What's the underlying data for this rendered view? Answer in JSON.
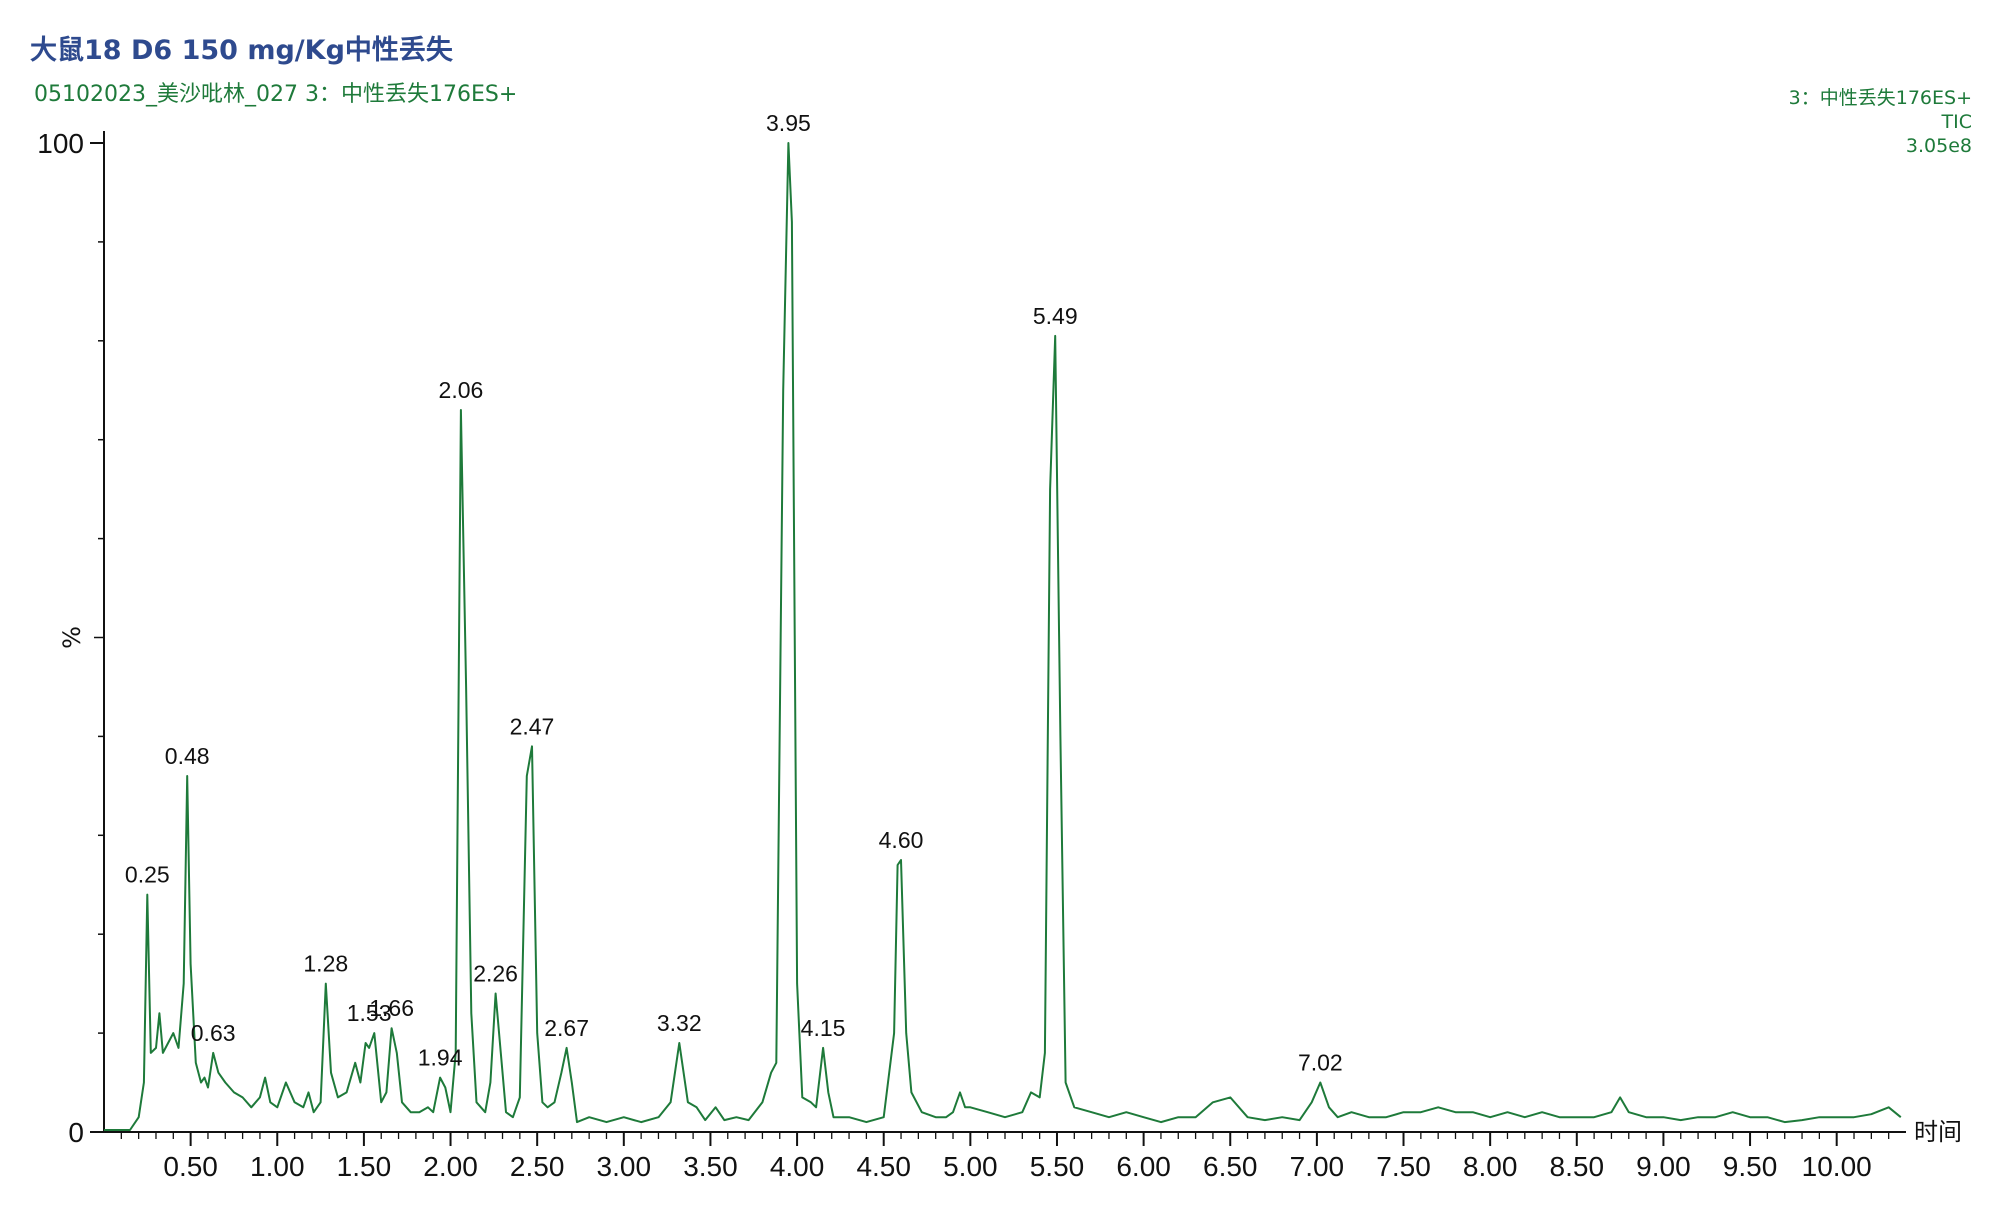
{
  "header": {
    "title": "大鼠18 D6 150 mg/Kg中性丢失",
    "subtitle": "05102023_美沙吡林_027 3：中性丢失176ES+"
  },
  "legend": {
    "function": "3：中性丢失176ES+",
    "mode": "TIC",
    "intensity": "3.05e8"
  },
  "colors": {
    "trace": "#1e7a3a",
    "title": "#2e4a8e",
    "axis": "#111111"
  },
  "chart_data": {
    "type": "line",
    "title": "大鼠18 D6 150 mg/Kg中性丢失",
    "xlabel": "时间",
    "ylabel": "%",
    "xlim": [
      0,
      10.4
    ],
    "ylim": [
      0,
      100
    ],
    "x_ticks": [
      "0.50",
      "1.00",
      "1.50",
      "2.00",
      "2.50",
      "3.00",
      "3.50",
      "4.00",
      "4.50",
      "5.00",
      "5.50",
      "6.00",
      "6.50",
      "7.00",
      "7.50",
      "8.00",
      "8.50",
      "9.00",
      "9.50",
      "10.00"
    ],
    "y_ticks": [
      "0",
      "100"
    ],
    "peak_labels": [
      {
        "x": 0.25,
        "y": 24,
        "label": "0.25"
      },
      {
        "x": 0.48,
        "y": 36,
        "label": "0.48"
      },
      {
        "x": 0.63,
        "y": 8,
        "label": "0.63"
      },
      {
        "x": 1.28,
        "y": 15,
        "label": "1.28"
      },
      {
        "x": 1.53,
        "y": 10,
        "label": "1.53"
      },
      {
        "x": 1.66,
        "y": 10.5,
        "label": "1.66"
      },
      {
        "x": 1.94,
        "y": 5.5,
        "label": "1.94"
      },
      {
        "x": 2.06,
        "y": 73,
        "label": "2.06"
      },
      {
        "x": 2.26,
        "y": 14,
        "label": "2.26"
      },
      {
        "x": 2.47,
        "y": 39,
        "label": "2.47"
      },
      {
        "x": 2.67,
        "y": 8.5,
        "label": "2.67"
      },
      {
        "x": 3.32,
        "y": 9,
        "label": "3.32"
      },
      {
        "x": 3.95,
        "y": 100,
        "label": "3.95"
      },
      {
        "x": 4.15,
        "y": 8.5,
        "label": "4.15"
      },
      {
        "x": 4.6,
        "y": 27.5,
        "label": "4.60"
      },
      {
        "x": 5.49,
        "y": 80.5,
        "label": "5.49"
      },
      {
        "x": 7.02,
        "y": 5,
        "label": "7.02"
      }
    ],
    "series": [
      {
        "points": [
          [
            0.0,
            0.2
          ],
          [
            0.15,
            0.2
          ],
          [
            0.2,
            1.5
          ],
          [
            0.23,
            5
          ],
          [
            0.25,
            24
          ],
          [
            0.27,
            8
          ],
          [
            0.3,
            8.5
          ],
          [
            0.32,
            12
          ],
          [
            0.34,
            8
          ],
          [
            0.37,
            9
          ],
          [
            0.4,
            10
          ],
          [
            0.43,
            8.5
          ],
          [
            0.46,
            15
          ],
          [
            0.48,
            36
          ],
          [
            0.5,
            17
          ],
          [
            0.53,
            7
          ],
          [
            0.56,
            5
          ],
          [
            0.58,
            5.5
          ],
          [
            0.6,
            4.5
          ],
          [
            0.63,
            8
          ],
          [
            0.66,
            6
          ],
          [
            0.7,
            5
          ],
          [
            0.75,
            4
          ],
          [
            0.8,
            3.5
          ],
          [
            0.85,
            2.5
          ],
          [
            0.9,
            3.5
          ],
          [
            0.93,
            5.5
          ],
          [
            0.96,
            3
          ],
          [
            1.0,
            2.5
          ],
          [
            1.05,
            5
          ],
          [
            1.1,
            3
          ],
          [
            1.15,
            2.5
          ],
          [
            1.18,
            4
          ],
          [
            1.21,
            2
          ],
          [
            1.25,
            3
          ],
          [
            1.28,
            15
          ],
          [
            1.31,
            6
          ],
          [
            1.35,
            3.5
          ],
          [
            1.4,
            4
          ],
          [
            1.45,
            7
          ],
          [
            1.48,
            5
          ],
          [
            1.51,
            9
          ],
          [
            1.53,
            8.5
          ],
          [
            1.56,
            10
          ],
          [
            1.6,
            3
          ],
          [
            1.63,
            4
          ],
          [
            1.66,
            10.5
          ],
          [
            1.69,
            8
          ],
          [
            1.72,
            3
          ],
          [
            1.77,
            2
          ],
          [
            1.82,
            2
          ],
          [
            1.87,
            2.5
          ],
          [
            1.9,
            2
          ],
          [
            1.94,
            5.5
          ],
          [
            1.97,
            4.5
          ],
          [
            2.0,
            2
          ],
          [
            2.03,
            8
          ],
          [
            2.06,
            73
          ],
          [
            2.09,
            45
          ],
          [
            2.12,
            12
          ],
          [
            2.15,
            3
          ],
          [
            2.2,
            2
          ],
          [
            2.23,
            5
          ],
          [
            2.26,
            14
          ],
          [
            2.29,
            8
          ],
          [
            2.32,
            2
          ],
          [
            2.36,
            1.5
          ],
          [
            2.4,
            3.5
          ],
          [
            2.44,
            36
          ],
          [
            2.47,
            39
          ],
          [
            2.5,
            10
          ],
          [
            2.53,
            3
          ],
          [
            2.56,
            2.5
          ],
          [
            2.6,
            3
          ],
          [
            2.64,
            6
          ],
          [
            2.67,
            8.5
          ],
          [
            2.7,
            5
          ],
          [
            2.73,
            1
          ],
          [
            2.8,
            1.5
          ],
          [
            2.9,
            1
          ],
          [
            3.0,
            1.5
          ],
          [
            3.1,
            1
          ],
          [
            3.2,
            1.5
          ],
          [
            3.27,
            3
          ],
          [
            3.32,
            9
          ],
          [
            3.37,
            3
          ],
          [
            3.42,
            2.5
          ],
          [
            3.47,
            1.2
          ],
          [
            3.53,
            2.5
          ],
          [
            3.58,
            1.2
          ],
          [
            3.65,
            1.5
          ],
          [
            3.72,
            1.2
          ],
          [
            3.8,
            3
          ],
          [
            3.85,
            6
          ],
          [
            3.88,
            7
          ],
          [
            3.92,
            75
          ],
          [
            3.95,
            100
          ],
          [
            3.97,
            92
          ],
          [
            4.0,
            15
          ],
          [
            4.03,
            3.5
          ],
          [
            4.08,
            3
          ],
          [
            4.11,
            2.5
          ],
          [
            4.15,
            8.5
          ],
          [
            4.18,
            4
          ],
          [
            4.21,
            1.5
          ],
          [
            4.3,
            1.5
          ],
          [
            4.4,
            1
          ],
          [
            4.5,
            1.5
          ],
          [
            4.56,
            10
          ],
          [
            4.58,
            27
          ],
          [
            4.6,
            27.5
          ],
          [
            4.63,
            10
          ],
          [
            4.66,
            4
          ],
          [
            4.72,
            2
          ],
          [
            4.8,
            1.5
          ],
          [
            4.86,
            1.5
          ],
          [
            4.9,
            2
          ],
          [
            4.94,
            4
          ],
          [
            4.97,
            2.5
          ],
          [
            5.0,
            2.5
          ],
          [
            5.1,
            2
          ],
          [
            5.2,
            1.5
          ],
          [
            5.3,
            2
          ],
          [
            5.35,
            4
          ],
          [
            5.4,
            3.5
          ],
          [
            5.43,
            8
          ],
          [
            5.46,
            65
          ],
          [
            5.49,
            80.5
          ],
          [
            5.52,
            40
          ],
          [
            5.55,
            5
          ],
          [
            5.6,
            2.5
          ],
          [
            5.7,
            2
          ],
          [
            5.8,
            1.5
          ],
          [
            5.9,
            2
          ],
          [
            6.0,
            1.5
          ],
          [
            6.1,
            1
          ],
          [
            6.2,
            1.5
          ],
          [
            6.3,
            1.5
          ],
          [
            6.4,
            3
          ],
          [
            6.5,
            3.5
          ],
          [
            6.6,
            1.5
          ],
          [
            6.7,
            1.2
          ],
          [
            6.8,
            1.5
          ],
          [
            6.9,
            1.2
          ],
          [
            6.97,
            3
          ],
          [
            7.02,
            5
          ],
          [
            7.07,
            2.5
          ],
          [
            7.12,
            1.5
          ],
          [
            7.2,
            2
          ],
          [
            7.3,
            1.5
          ],
          [
            7.4,
            1.5
          ],
          [
            7.5,
            2
          ],
          [
            7.6,
            2
          ],
          [
            7.7,
            2.5
          ],
          [
            7.8,
            2
          ],
          [
            7.9,
            2
          ],
          [
            8.0,
            1.5
          ],
          [
            8.1,
            2
          ],
          [
            8.2,
            1.5
          ],
          [
            8.3,
            2
          ],
          [
            8.4,
            1.5
          ],
          [
            8.5,
            1.5
          ],
          [
            8.6,
            1.5
          ],
          [
            8.7,
            2
          ],
          [
            8.75,
            3.5
          ],
          [
            8.8,
            2
          ],
          [
            8.9,
            1.5
          ],
          [
            9.0,
            1.5
          ],
          [
            9.1,
            1.2
          ],
          [
            9.2,
            1.5
          ],
          [
            9.3,
            1.5
          ],
          [
            9.4,
            2
          ],
          [
            9.5,
            1.5
          ],
          [
            9.6,
            1.5
          ],
          [
            9.7,
            1
          ],
          [
            9.8,
            1.2
          ],
          [
            9.9,
            1.5
          ],
          [
            10.0,
            1.5
          ],
          [
            10.1,
            1.5
          ],
          [
            10.2,
            1.8
          ],
          [
            10.3,
            2.5
          ],
          [
            10.37,
            1.5
          ]
        ]
      }
    ]
  }
}
